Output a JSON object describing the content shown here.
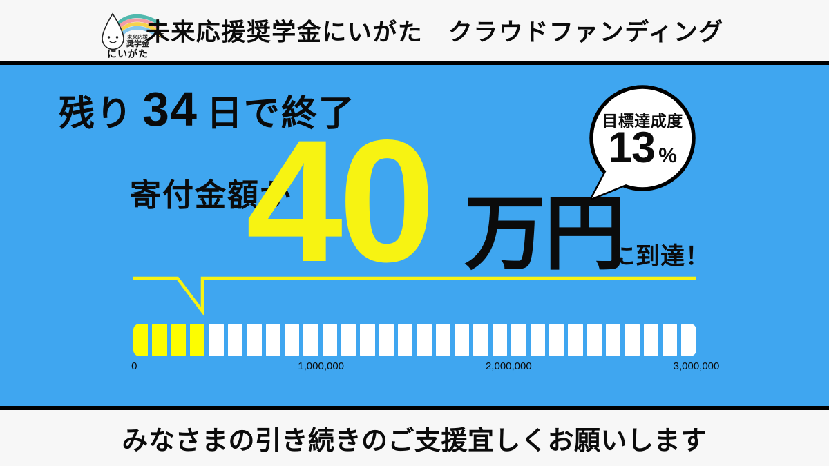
{
  "header": {
    "logo": {
      "badge_line1": "未来応援",
      "badge_line2": "奨学金",
      "name": "にいがた",
      "star_icon": "★",
      "rainbow_colors": [
        "#52b9ae",
        "#f29da5",
        "#f6d24e",
        "#86c6ea"
      ]
    },
    "title": "未来応援奨学金にいがた　クラウドファンディング"
  },
  "hero": {
    "days_remaining": {
      "prefix": "残り",
      "days": "34",
      "suffix": "日で終了"
    },
    "achievement_badge": {
      "label": "目標達成度",
      "value": "13",
      "unit": "%"
    },
    "amount": {
      "label": "寄付金額が",
      "value": "40",
      "unit": "万円",
      "suffix": "に到達！"
    }
  },
  "chart_data": {
    "type": "bar",
    "current_value": 400000,
    "goal_value": 3000000,
    "percent_achieved": 13,
    "x_ticks": [
      "0",
      "1,000,000",
      "2,000,000",
      "3,000,000"
    ],
    "xlim": [
      0,
      3000000
    ],
    "segments_total": 30,
    "segments_filled": 4,
    "grid": false,
    "legend": false
  },
  "footer": {
    "message": "みなさまの引き続きのご支援宜しくお願いします"
  },
  "colors": {
    "blue": "#3fa6f0",
    "yellow": "#f7f312",
    "bar-fill": "#fdfd00",
    "bar-empty": "#ffffff",
    "band": "#f7f7f7",
    "ink": "#0b0b0b"
  }
}
